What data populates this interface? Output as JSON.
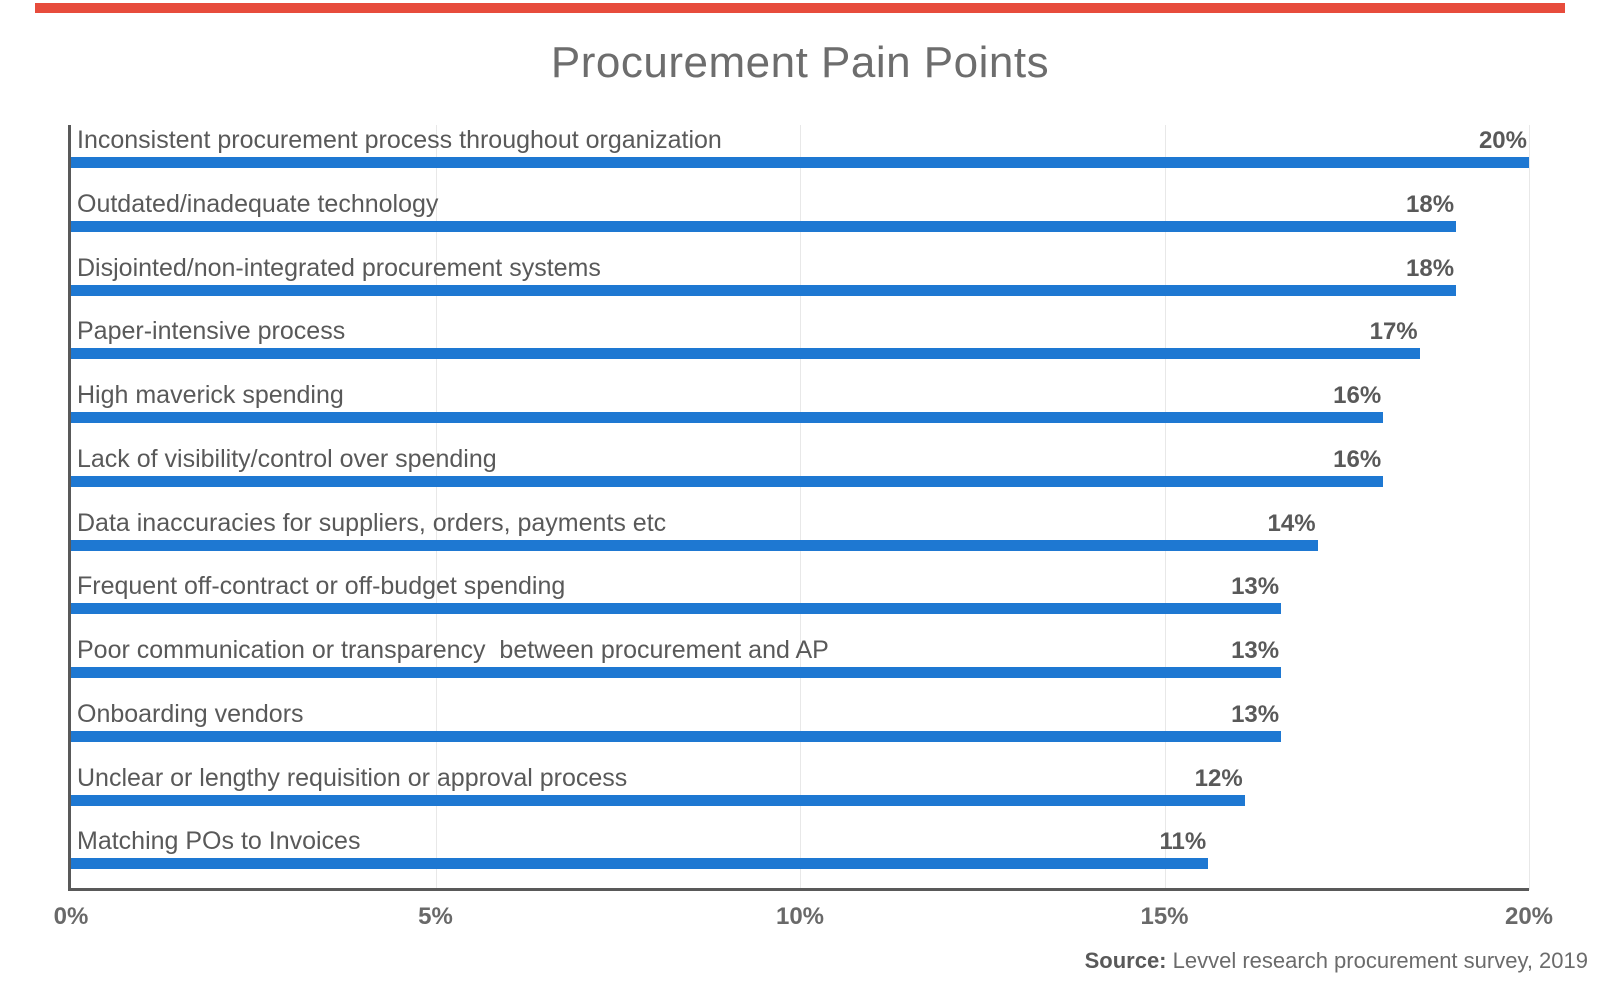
{
  "colors": {
    "bar_blue": "#1e78d2",
    "top_accent": "#e74c3c",
    "axis_gray": "#595959",
    "grid_gray": "#e8e8e8",
    "label_gray": "#595959",
    "tick_gray": "#696969",
    "title_gray": "#6d6d6d"
  },
  "chart_data": {
    "type": "bar",
    "orientation": "horizontal",
    "title": "Procurement Pain Points",
    "xlabel": "",
    "ylabel": "",
    "xlim": [
      0,
      20
    ],
    "x_ticks": [
      "0%",
      "5%",
      "10%",
      "15%",
      "20%"
    ],
    "grid": "vertical-light",
    "legend": "none",
    "rows": [
      {
        "label": "Inconsistent procurement process throughout organization",
        "value": 20,
        "value_label": "20%",
        "bar_drawn_pct": 100
      },
      {
        "label": "Outdated/inadequate technology",
        "value": 18,
        "value_label": "18%",
        "bar_drawn_pct": 95
      },
      {
        "label": "Disjointed/non-integrated procurement systems",
        "value": 18,
        "value_label": "18%",
        "bar_drawn_pct": 95
      },
      {
        "label": "Paper-intensive process",
        "value": 17,
        "value_label": "17%",
        "bar_drawn_pct": 92.5
      },
      {
        "label": "High maverick spending",
        "value": 16,
        "value_label": "16%",
        "bar_drawn_pct": 90
      },
      {
        "label": "Lack of visibility/control over spending",
        "value": 16,
        "value_label": "16%",
        "bar_drawn_pct": 90
      },
      {
        "label": "Data inaccuracies for suppliers, orders, payments etc",
        "value": 14,
        "value_label": "14%",
        "bar_drawn_pct": 85.5
      },
      {
        "label": "Frequent off-contract or off-budget spending",
        "value": 13,
        "value_label": "13%",
        "bar_drawn_pct": 83
      },
      {
        "label": "Poor communication or transparency  between procurement and AP",
        "value": 13,
        "value_label": "13%",
        "bar_drawn_pct": 83
      },
      {
        "label": "Onboarding vendors",
        "value": 13,
        "value_label": "13%",
        "bar_drawn_pct": 83
      },
      {
        "label": "Unclear or lengthy requisition or approval process",
        "value": 12,
        "value_label": "12%",
        "bar_drawn_pct": 80.5
      },
      {
        "label": "Matching POs to Invoices",
        "value": 11,
        "value_label": "11%",
        "bar_drawn_pct": 78
      }
    ],
    "source": {
      "label": "Source:",
      "text": " Levvel research procurement survey, 2019"
    }
  }
}
